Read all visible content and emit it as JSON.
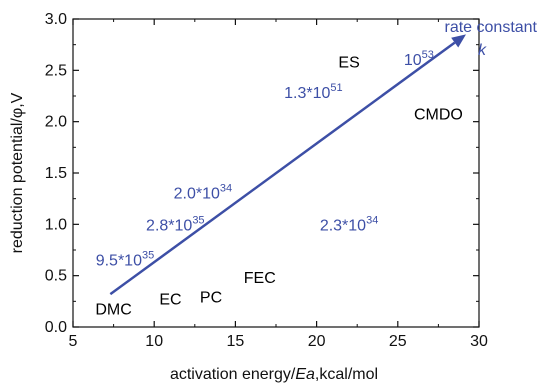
{
  "chart_data": {
    "type": "scatter",
    "title": "",
    "xlabel": "activation energy/Ea,kcal/mol",
    "xlabel_parts": [
      "activation energy/",
      "Ea",
      ",kcal/mol"
    ],
    "ylabel": "reduction potential/φ,V",
    "xlim": [
      5,
      30
    ],
    "ylim": [
      0.0,
      3.0
    ],
    "x_ticks": [
      "5",
      "10",
      "15",
      "20",
      "25",
      "30"
    ],
    "y_ticks": [
      "0.0",
      "0.5",
      "1.0",
      "1.5",
      "2.0",
      "2.5",
      "3.0"
    ],
    "grid": false,
    "points": [
      {
        "name": "DMC",
        "x": 7.5,
        "y": 0.12
      },
      {
        "name": "EC",
        "x": 11.0,
        "y": 0.22
      },
      {
        "name": "PC",
        "x": 13.5,
        "y": 0.24
      },
      {
        "name": "FEC",
        "x": 16.5,
        "y": 0.43
      },
      {
        "name": "ES",
        "x": 22.0,
        "y": 2.53
      },
      {
        "name": "CMDO",
        "x": 27.5,
        "y": 2.02
      }
    ],
    "rate_annotations": [
      {
        "base": "9.5*10",
        "exp": "35",
        "x": 8.2,
        "y": 0.6
      },
      {
        "base": "2.8*10",
        "exp": "35",
        "x": 11.3,
        "y": 0.94
      },
      {
        "base": "2.0*10",
        "exp": "34",
        "x": 13.0,
        "y": 1.25
      },
      {
        "base": "2.3*10",
        "exp": "34",
        "x": 22.0,
        "y": 0.94
      },
      {
        "base": "1.3*10",
        "exp": "51",
        "x": 19.8,
        "y": 2.23
      },
      {
        "base": "10",
        "exp": "53",
        "x": 26.3,
        "y": 2.55
      }
    ],
    "trend_arrow": {
      "x0": 7.3,
      "y0": 0.32,
      "x1": 29.2,
      "y1": 2.85
    },
    "arrow_label_lines": [
      "rate constant",
      "k"
    ]
  }
}
